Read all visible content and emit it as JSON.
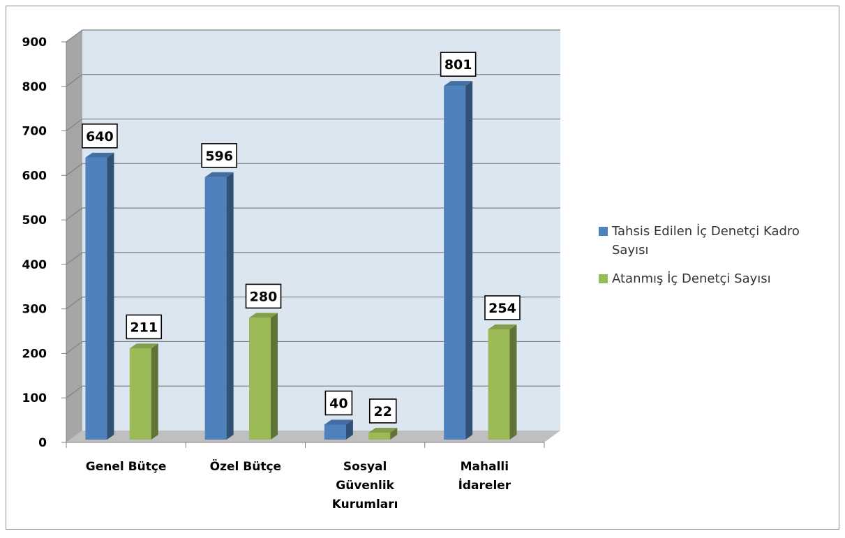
{
  "chart_data": {
    "type": "bar",
    "categories": [
      [
        "Genel Bütçe"
      ],
      [
        "Özel Bütçe"
      ],
      [
        "Sosyal",
        "Güvenlik",
        "Kurumları"
      ],
      [
        "Mahalli",
        "İdareler"
      ]
    ],
    "series": [
      {
        "name": "Tahsis Edilen İç Denetçi Kadro Sayısı",
        "values": [
          640,
          596,
          40,
          801
        ],
        "color": "#4F81BD"
      },
      {
        "name": "Atanmış İç Denetçi Sayısı",
        "values": [
          211,
          280,
          22,
          254
        ],
        "color": "#9BBB59"
      }
    ],
    "ylim": [
      0,
      900
    ],
    "yticks": [
      "0",
      "100",
      "200",
      "300",
      "400",
      "500",
      "600",
      "700",
      "800",
      "900"
    ],
    "grid": true,
    "legend": "right",
    "data_labels": true,
    "style": "3d-clustered-column"
  }
}
